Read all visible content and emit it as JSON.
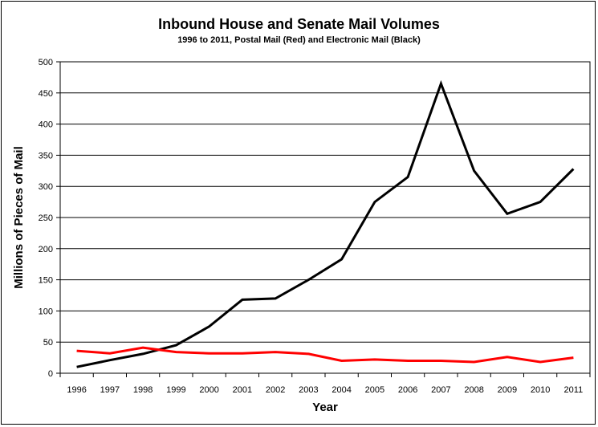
{
  "chart_data": {
    "type": "line",
    "title": "Inbound House and Senate Mail Volumes",
    "subtitle": "1996 to 2011, Postal Mail (Red) and Electronic Mail (Black)",
    "xlabel": "Year",
    "ylabel": "Millions of Pieces of Mail",
    "categories": [
      "1996",
      "1997",
      "1998",
      "1999",
      "2000",
      "2001",
      "2002",
      "2003",
      "2004",
      "2005",
      "2006",
      "2007",
      "2008",
      "2009",
      "2010",
      "2011"
    ],
    "ylim": [
      0,
      500
    ],
    "yticks": [
      "0",
      "50",
      "100",
      "150",
      "200",
      "250",
      "300",
      "350",
      "400",
      "450",
      "500"
    ],
    "grid": "horizontal",
    "legend": "none",
    "series": [
      {
        "color": "#000000",
        "values": [
          10,
          21,
          31,
          45,
          75,
          118,
          120,
          150,
          183,
          275,
          315,
          465,
          325,
          256,
          275,
          328
        ]
      },
      {
        "color": "#ff0000",
        "values": [
          36,
          32,
          41,
          34,
          32,
          32,
          34,
          31,
          20,
          22,
          20,
          20,
          18,
          26,
          18,
          25
        ]
      }
    ]
  }
}
